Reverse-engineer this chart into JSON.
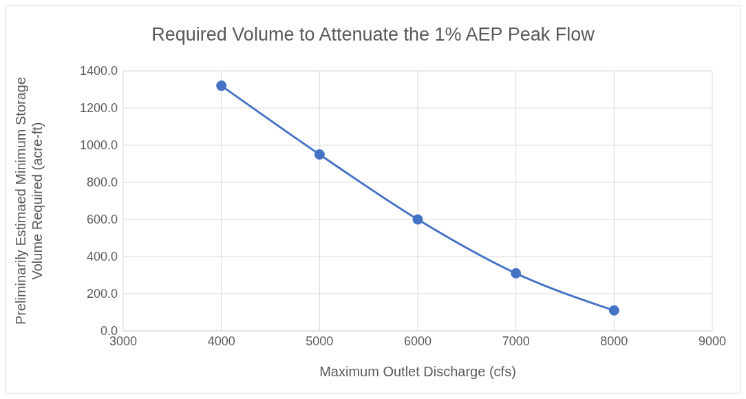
{
  "chart_data": {
    "type": "line",
    "title": "Required Volume to Attenuate the 1% AEP Peak Flow",
    "xlabel": "Maximum Outlet Discharge (cfs)",
    "ylabel": "Preliminarily Estimaed Minimum Storage Volume Required (acre-ft)",
    "x": [
      4000,
      5000,
      6000,
      7000,
      8000
    ],
    "series": [
      {
        "color": "#4472c4",
        "values": [
          1320,
          950,
          600,
          310,
          110
        ]
      }
    ],
    "xlim": [
      3000,
      9000
    ],
    "xticks": [
      3000,
      4000,
      5000,
      6000,
      7000,
      8000,
      9000
    ],
    "ylim": [
      0,
      1400
    ],
    "yticks": [
      {
        "value": 0,
        "label": "0.0"
      },
      {
        "value": 200,
        "label": "200.0"
      },
      {
        "value": 400,
        "label": "400.0"
      },
      {
        "value": 600,
        "label": "600.0"
      },
      {
        "value": 800,
        "label": "800.0"
      },
      {
        "value": 1000,
        "label": "1000.0"
      },
      {
        "value": 1200,
        "label": "1200.0"
      },
      {
        "value": 1400,
        "label": "1400.0"
      }
    ],
    "grid": true,
    "legend": false,
    "marker": "circle",
    "line_style": "solid"
  }
}
